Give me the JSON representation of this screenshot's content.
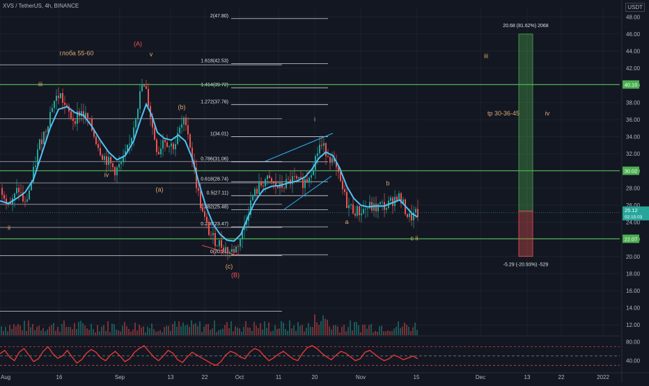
{
  "header": {
    "title": "XVS / TetherUS, 4h, BINANCE",
    "currency": "USDT"
  },
  "colors": {
    "bg": "#131722",
    "ema": "#4fc3f7",
    "up": "#26a69a",
    "down": "#ef5350",
    "hline": "#4caf50",
    "fib": "#d1d4dc",
    "wave": "#e0a96d",
    "waveRed": "#ef5350",
    "rsi": "#e53935"
  },
  "chart_data": [
    {
      "type": "candlestick",
      "ylim": [
        10.8,
        49
      ],
      "y_ticks": [
        "12.00",
        "14.00",
        "16.00",
        "18.00",
        "20.00",
        "22.00",
        "24.00",
        "26.00",
        "28.00",
        "30.00",
        "32.00",
        "34.00",
        "36.00",
        "38.00",
        "40.00",
        "42.00",
        "44.00",
        "46.00",
        "48.00"
      ],
      "x_ticks": [
        "Aug",
        "16",
        "Sep",
        "13",
        "22",
        "Oct",
        "11",
        "20",
        "Nov",
        "15",
        "Dec",
        "13",
        "22",
        "2022"
      ],
      "price_path": [
        [
          0,
          28
        ],
        [
          8,
          27
        ],
        [
          15,
          26
        ],
        [
          25,
          28
        ],
        [
          35,
          26
        ],
        [
          45,
          29
        ],
        [
          55,
          33
        ],
        [
          65,
          35
        ],
        [
          75,
          38
        ],
        [
          85,
          39
        ],
        [
          95,
          37
        ],
        [
          105,
          36
        ],
        [
          115,
          37
        ],
        [
          125,
          36
        ],
        [
          135,
          34
        ],
        [
          145,
          32
        ],
        [
          155,
          31
        ],
        [
          165,
          30
        ],
        [
          175,
          31
        ],
        [
          185,
          33
        ],
        [
          195,
          37
        ],
        [
          203,
          40
        ],
        [
          210,
          39
        ],
        [
          218,
          35
        ],
        [
          226,
          32
        ],
        [
          234,
          34
        ],
        [
          242,
          33
        ],
        [
          250,
          33
        ],
        [
          258,
          35
        ],
        [
          266,
          36
        ],
        [
          274,
          32
        ],
        [
          282,
          28
        ],
        [
          290,
          25
        ],
        [
          298,
          23
        ],
        [
          306,
          22
        ],
        [
          314,
          21.5
        ],
        [
          322,
          21
        ],
        [
          330,
          20.5
        ],
        [
          338,
          21
        ],
        [
          346,
          22.5
        ],
        [
          354,
          25
        ],
        [
          362,
          27
        ],
        [
          370,
          28
        ],
        [
          380,
          29
        ],
        [
          390,
          28.5
        ],
        [
          400,
          28
        ],
        [
          410,
          28.5
        ],
        [
          420,
          29
        ],
        [
          430,
          28.5
        ],
        [
          440,
          29
        ],
        [
          450,
          31
        ],
        [
          458,
          33
        ],
        [
          466,
          32.5
        ],
        [
          474,
          31.5
        ],
        [
          482,
          30
        ],
        [
          490,
          28
        ],
        [
          498,
          26
        ],
        [
          506,
          25.5
        ],
        [
          514,
          25.2
        ],
        [
          522,
          25.5
        ],
        [
          530,
          25.8
        ],
        [
          538,
          25.6
        ],
        [
          546,
          26
        ],
        [
          554,
          25.8
        ],
        [
          562,
          26.5
        ],
        [
          570,
          27.2
        ],
        [
          578,
          26
        ],
        [
          586,
          24.5
        ],
        [
          594,
          24.8
        ],
        [
          600,
          25.1
        ]
      ],
      "ema_path": [
        [
          0,
          26.5
        ],
        [
          12,
          26.2
        ],
        [
          24,
          26.8
        ],
        [
          36,
          27.5
        ],
        [
          48,
          29
        ],
        [
          60,
          32
        ],
        [
          72,
          35
        ],
        [
          84,
          37.2
        ],
        [
          96,
          37.5
        ],
        [
          108,
          36.8
        ],
        [
          120,
          36.5
        ],
        [
          132,
          35.2
        ],
        [
          144,
          33.6
        ],
        [
          156,
          32.2
        ],
        [
          168,
          31.3
        ],
        [
          180,
          31.8
        ],
        [
          192,
          33.5
        ],
        [
          202,
          36
        ],
        [
          210,
          37.8
        ],
        [
          218,
          36.5
        ],
        [
          226,
          34.5
        ],
        [
          236,
          33.8
        ],
        [
          246,
          33.6
        ],
        [
          256,
          34.2
        ],
        [
          266,
          33.5
        ],
        [
          276,
          31.5
        ],
        [
          286,
          28.5
        ],
        [
          296,
          25.8
        ],
        [
          306,
          23.8
        ],
        [
          316,
          22.6
        ],
        [
          326,
          21.9
        ],
        [
          336,
          21.8
        ],
        [
          346,
          22.6
        ],
        [
          356,
          24.6
        ],
        [
          366,
          26.4
        ],
        [
          378,
          27.8
        ],
        [
          390,
          28.2
        ],
        [
          402,
          28.3
        ],
        [
          414,
          28.6
        ],
        [
          426,
          28.8
        ],
        [
          438,
          29.3
        ],
        [
          448,
          30.2
        ],
        [
          458,
          31.5
        ],
        [
          468,
          32.2
        ],
        [
          478,
          31.8
        ],
        [
          488,
          30.3
        ],
        [
          498,
          28.2
        ],
        [
          508,
          26.8
        ],
        [
          518,
          26
        ],
        [
          528,
          25.8
        ],
        [
          540,
          25.9
        ],
        [
          552,
          25.9
        ],
        [
          564,
          26.3
        ],
        [
          574,
          26.6
        ],
        [
          582,
          25.9
        ],
        [
          592,
          25
        ],
        [
          600,
          24.6
        ]
      ],
      "h_lines": [
        {
          "price": 40.1,
          "label": "40.10",
          "label_bg": "#4caf50"
        },
        {
          "price": 30.02,
          "label": "30.02",
          "label_bg": "#4caf50"
        },
        {
          "price": 22.07,
          "label": "22.07",
          "label_bg": "#4caf50"
        }
      ],
      "current_price": {
        "price": 25.12,
        "label": "25.12",
        "sub_label": "02:15:03"
      },
      "fib_levels": [
        {
          "price": 47.8,
          "label": "2(47.80)"
        },
        {
          "price": 42.53,
          "label": "1.618(42.53)"
        },
        {
          "price": 39.72,
          "label": "1.414(39.72)"
        },
        {
          "price": 37.76,
          "label": "1.272(37.76)"
        },
        {
          "price": 34.01,
          "label": "1(34.01)"
        },
        {
          "price": 31.06,
          "label": "0.786(31.06)"
        },
        {
          "price": 28.74,
          "label": "0.618(28.74)"
        },
        {
          "price": 27.11,
          "label": "0.5(27.11)"
        },
        {
          "price": 25.48,
          "label": "0.382(25.48)"
        },
        {
          "price": 23.47,
          "label": "0.236(23.47)"
        },
        {
          "price": 20.21,
          "label": "0(20.21)"
        }
      ],
      "white_lines": [
        42.4,
        36.1,
        31.1,
        28.6,
        26.1,
        23.4,
        20.1,
        13.6
      ],
      "wave_labels": [
        {
          "text": "(A)",
          "x": 198,
          "price": 44.6,
          "red": true
        },
        {
          "text": "v",
          "x": 217,
          "price": 43.4
        },
        {
          "text": "глоба 55-60",
          "x": 110,
          "price": 43.5
        },
        {
          "text": "iii",
          "x": 58,
          "price": 39.9
        },
        {
          "text": "(b)",
          "x": 261,
          "price": 37.2
        },
        {
          "text": "iv",
          "x": 153,
          "price": 29.3
        },
        {
          "text": "(a)",
          "x": 229,
          "price": 27.6
        },
        {
          "text": "ii",
          "x": 13,
          "price": 23.1
        },
        {
          "text": "(c)",
          "x": 329,
          "price": 18.6
        },
        {
          "text": "(B)",
          "x": 338,
          "price": 17.6,
          "red": true
        },
        {
          "text": "i",
          "x": 452,
          "price": 35.8
        },
        {
          "text": "a",
          "x": 498,
          "price": 23.8
        },
        {
          "text": "b",
          "x": 557,
          "price": 28.3
        },
        {
          "text": "c  ii",
          "x": 595,
          "price": 21.9
        },
        {
          "text": "iii",
          "x": 698,
          "price": 43.2
        },
        {
          "text": "iv",
          "x": 786,
          "price": 36.5
        },
        {
          "text": "tp 30-36-45",
          "x": 723,
          "price": 36.5
        }
      ],
      "measure": {
        "entry": 25.3,
        "target": 46.0,
        "stop": 20.01,
        "up_label": "20.68 (81.62%) 2068",
        "down_label": "-5.29 (-20.93%) -529"
      }
    },
    {
      "type": "line",
      "name": "RSI",
      "ylim": [
        20,
        90
      ],
      "y_ticks": [
        "80.00",
        "40.00"
      ],
      "bands": [
        70,
        30
      ],
      "values": [
        55,
        62,
        48,
        40,
        58,
        66,
        52,
        38,
        44,
        60,
        70,
        55,
        45,
        50,
        62,
        48,
        35,
        42,
        56,
        64,
        58,
        46,
        40,
        52,
        60,
        50,
        38,
        44,
        58,
        66,
        72,
        60,
        48,
        40,
        50,
        62,
        56,
        42,
        36,
        48,
        58,
        52,
        46,
        40,
        34,
        30,
        38,
        52,
        60,
        56,
        48,
        44,
        58,
        66,
        62,
        50,
        40,
        46,
        54,
        60,
        52,
        44,
        40,
        56,
        68,
        72,
        66,
        56,
        48,
        42,
        52,
        60,
        56,
        48,
        40,
        44,
        58,
        62,
        54,
        46,
        40,
        44,
        52,
        48,
        42,
        46,
        50,
        44
      ]
    }
  ]
}
